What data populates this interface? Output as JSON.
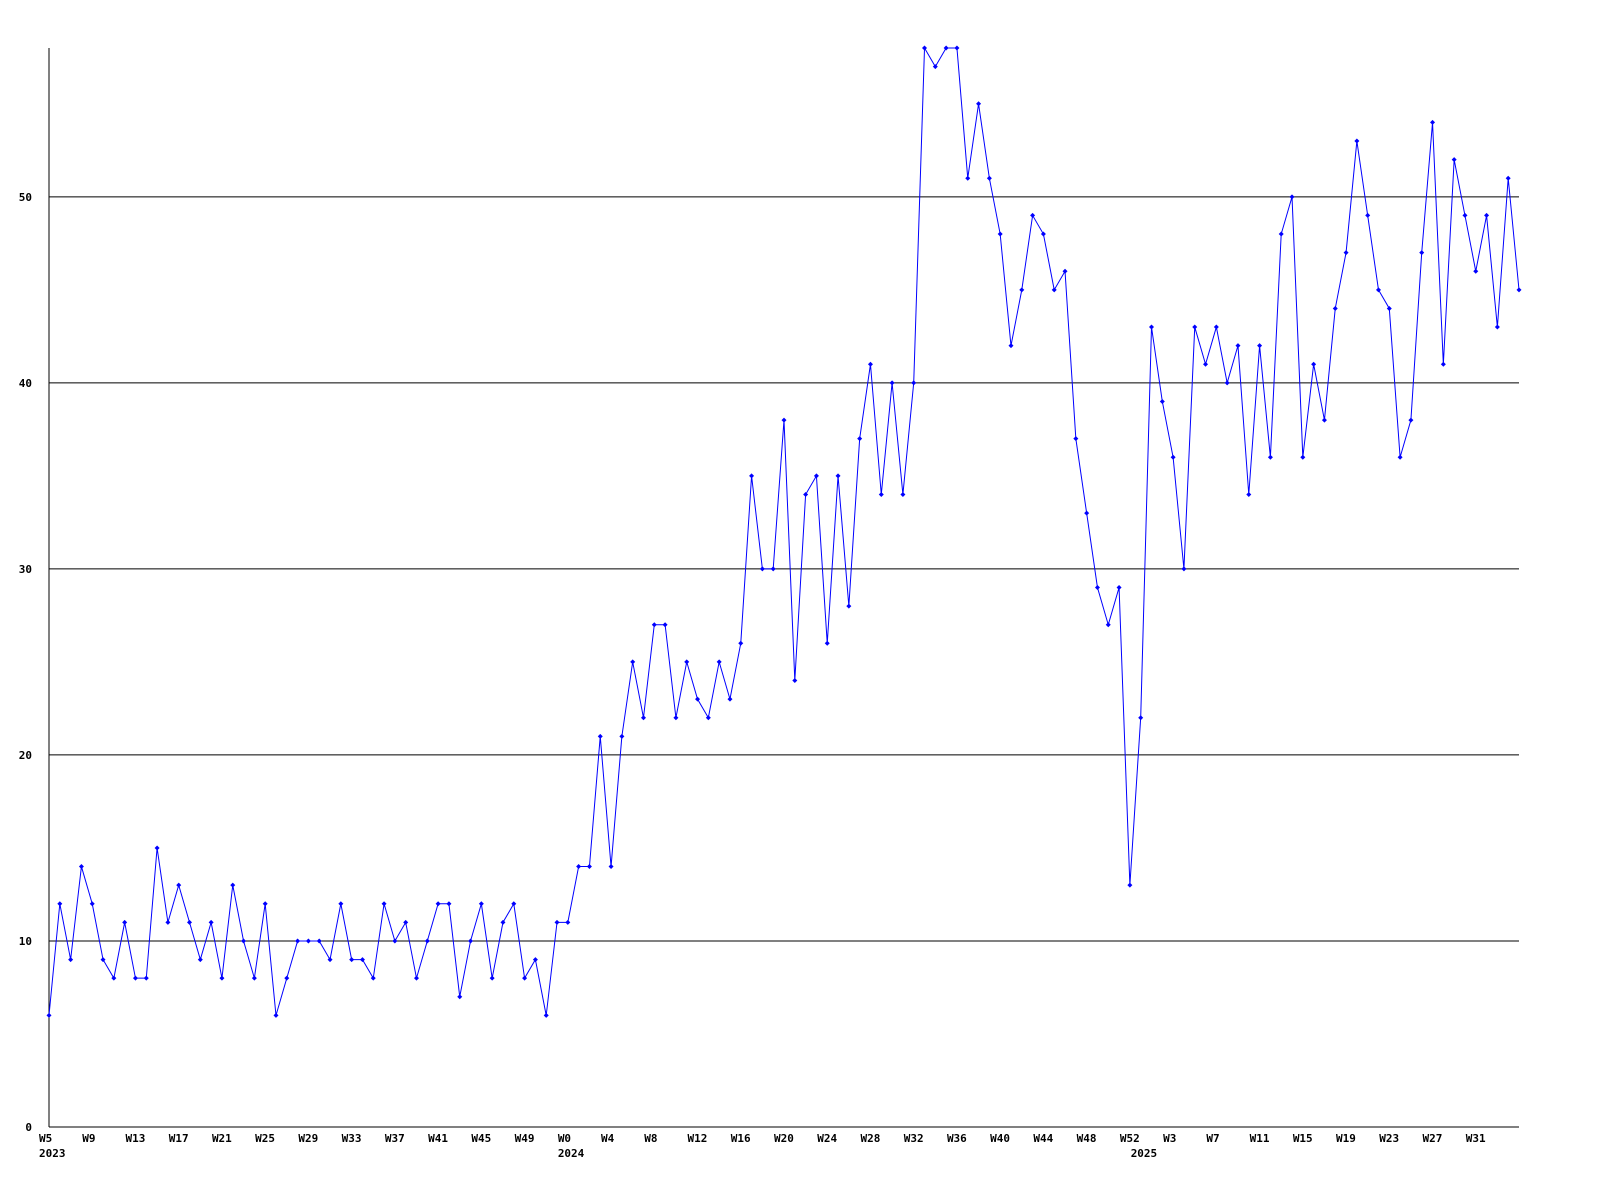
{
  "chart_data": {
    "type": "line",
    "categories": [
      "W5",
      null,
      null,
      null,
      "W9",
      null,
      null,
      null,
      "W13",
      null,
      null,
      null,
      "W17",
      null,
      null,
      null,
      "W21",
      null,
      null,
      null,
      "W25",
      null,
      null,
      null,
      "W29",
      null,
      null,
      null,
      "W33",
      null,
      null,
      null,
      "W37",
      null,
      null,
      null,
      "W41",
      null,
      null,
      null,
      "W45",
      null,
      null,
      null,
      "W49",
      null,
      null,
      null,
      "W0",
      null,
      null,
      null,
      "W4",
      null,
      null,
      null,
      "W8",
      null,
      null,
      null,
      "W12",
      null,
      null,
      null,
      "W16",
      null,
      null,
      null,
      "W20",
      null,
      null,
      null,
      "W24",
      null,
      null,
      null,
      "W28",
      null,
      null,
      null,
      "W32",
      null,
      null,
      null,
      "W36",
      null,
      null,
      null,
      "W40",
      null,
      null,
      null,
      "W44",
      null,
      null,
      null,
      "W48",
      null,
      null,
      null,
      "W52",
      null,
      null,
      null,
      "W3",
      null,
      null,
      null,
      "W7",
      null,
      null,
      null,
      "W11",
      null,
      null,
      null,
      "W15",
      null,
      null,
      null,
      "W19",
      null,
      null,
      null,
      "W23",
      null,
      null,
      null,
      "W27",
      null,
      null,
      null,
      "W31",
      null,
      null,
      null,
      null
    ],
    "category_years": [
      "2023",
      null,
      null,
      null,
      null,
      null,
      null,
      null,
      null,
      null,
      null,
      null,
      null,
      null,
      null,
      null,
      null,
      null,
      null,
      null,
      null,
      null,
      null,
      null,
      null,
      null,
      null,
      null,
      null,
      null,
      null,
      null,
      null,
      null,
      null,
      null,
      null,
      null,
      null,
      null,
      null,
      null,
      null,
      null,
      null,
      null,
      null,
      null,
      "2024",
      null,
      null,
      null,
      null,
      null,
      null,
      null,
      null,
      null,
      null,
      null,
      null,
      null,
      null,
      null,
      null,
      null,
      null,
      null,
      null,
      null,
      null,
      null,
      null,
      null,
      null,
      null,
      null,
      null,
      null,
      null,
      null,
      null,
      null,
      null,
      null,
      null,
      null,
      null,
      null,
      null,
      null,
      null,
      null,
      null,
      null,
      null,
      null,
      null,
      null,
      null,
      null,
      "2025",
      null,
      null,
      null,
      null,
      null,
      null,
      null,
      null,
      null,
      null,
      null,
      null,
      null,
      null,
      null,
      null,
      null,
      null,
      null,
      null,
      null,
      null,
      null,
      null,
      null,
      null,
      null,
      null,
      null,
      null,
      null,
      null,
      null,
      null,
      null
    ],
    "series": [
      {
        "color": "#0000ff",
        "values": [
          6,
          12,
          9,
          14,
          12,
          9,
          8,
          11,
          8,
          8,
          15,
          11,
          13,
          11,
          9,
          11,
          8,
          13,
          10,
          8,
          12,
          6,
          8,
          10,
          10,
          10,
          9,
          12,
          9,
          9,
          8,
          12,
          10,
          11,
          8,
          10,
          12,
          12,
          7,
          10,
          12,
          8,
          11,
          12,
          8,
          9,
          6,
          11,
          11,
          14,
          14,
          21,
          14,
          21,
          25,
          22,
          27,
          27,
          22,
          25,
          23,
          22,
          25,
          23,
          26,
          35,
          30,
          30,
          38,
          24,
          34,
          35,
          26,
          35,
          28,
          37,
          41,
          34,
          40,
          34,
          40,
          58,
          57,
          58,
          58,
          51,
          55,
          51,
          48,
          42,
          45,
          49,
          48,
          45,
          46,
          37,
          33,
          29,
          27,
          29,
          13,
          22,
          43,
          39,
          36,
          30,
          43,
          41,
          43,
          40,
          42,
          34,
          42,
          36,
          48,
          50,
          36,
          41,
          38,
          44,
          47,
          53,
          49,
          45,
          44,
          36,
          38,
          47,
          54,
          41,
          52,
          49,
          46,
          49,
          43,
          51,
          45
        ]
      }
    ],
    "ylim": [
      0,
      58
    ],
    "yticks": [
      0,
      10,
      20,
      30,
      40,
      50
    ],
    "grid": true
  }
}
